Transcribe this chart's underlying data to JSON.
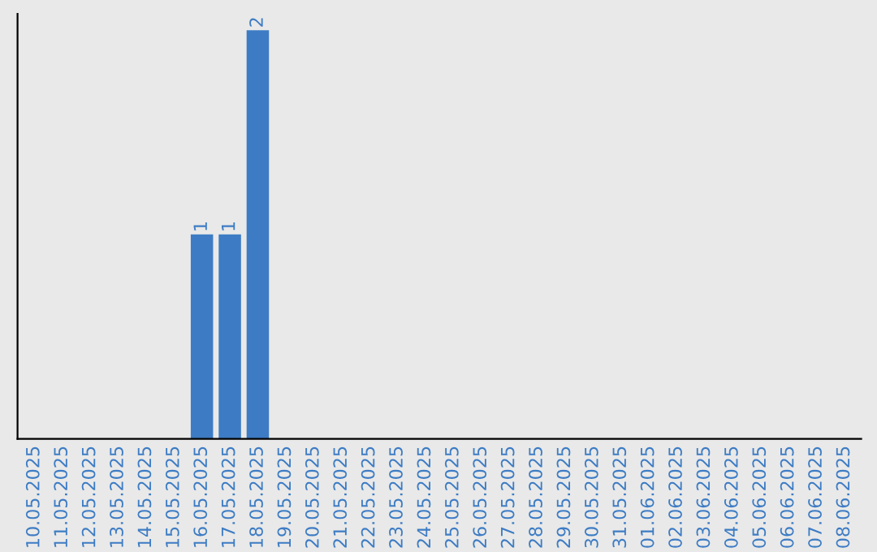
{
  "chart_data": {
    "type": "bar",
    "categories": [
      "10.05.2025",
      "11.05.2025",
      "12.05.2025",
      "13.05.2025",
      "14.05.2025",
      "15.05.2025",
      "16.05.2025",
      "17.05.2025",
      "18.05.2025",
      "19.05.2025",
      "20.05.2025",
      "21.05.2025",
      "22.05.2025",
      "23.05.2025",
      "24.05.2025",
      "25.05.2025",
      "26.05.2025",
      "27.05.2025",
      "28.05.2025",
      "29.05.2025",
      "30.05.2025",
      "31.05.2025",
      "01.06.2025",
      "02.06.2025",
      "03.06.2025",
      "04.06.2025",
      "05.06.2025",
      "06.06.2025",
      "07.06.2025",
      "08.06.2025"
    ],
    "values": [
      0,
      0,
      0,
      0,
      0,
      0,
      1,
      1,
      2,
      0,
      0,
      0,
      0,
      0,
      0,
      0,
      0,
      0,
      0,
      0,
      0,
      0,
      0,
      0,
      0,
      0,
      0,
      0,
      0,
      0
    ],
    "value_labels": [
      null,
      null,
      null,
      null,
      null,
      null,
      "1",
      "1",
      "2",
      null,
      null,
      null,
      null,
      null,
      null,
      null,
      null,
      null,
      null,
      null,
      null,
      null,
      null,
      null,
      null,
      null,
      null,
      null,
      null,
      null
    ],
    "color": "#3d7cc4",
    "tick_labels": "x",
    "grid": false,
    "legend": false
  }
}
